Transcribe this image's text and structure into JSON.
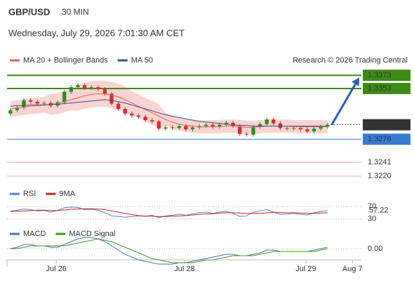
{
  "header": {
    "symbol": "GBP/USD",
    "interval": "30 MIN",
    "datetime": "Wednesday, July 29, 2026 7:01:30 AM CET"
  },
  "chart_data": [
    {
      "type": "candlestick",
      "source": "Research © 2026 Trading Central",
      "xlim": [
        0,
        52
      ],
      "xticks": [
        {
          "value": 7.3,
          "label": "Jul 26"
        },
        {
          "value": 26.3,
          "label": "Jul 28"
        },
        {
          "value": 44.3,
          "label": "Jul 29"
        },
        {
          "value": 51.2,
          "label": "Aug 7"
        }
      ],
      "ylim": [
        1.3208,
        1.3386
      ],
      "up_color": "#2e8b1e",
      "down_color": "#d0302b",
      "candles": {
        "open": [
          1.3315,
          1.332,
          1.3324,
          1.3335,
          1.3333,
          1.333,
          1.3331,
          1.3327,
          1.3332,
          1.3348,
          1.3355,
          1.3358,
          1.3354,
          1.3355,
          1.3352,
          1.3345,
          1.333,
          1.3322,
          1.3315,
          1.3312,
          1.331,
          1.3305,
          1.3303,
          1.3292,
          1.3294,
          1.3293,
          1.3296,
          1.3291,
          1.3294,
          1.3296,
          1.3298,
          1.3295,
          1.3298,
          1.3301,
          1.3296,
          1.3284,
          1.3283,
          1.3295,
          1.3299,
          1.3306,
          1.33,
          1.3293,
          1.3292,
          1.3293,
          1.3291,
          1.3288,
          1.3292,
          1.3295
        ],
        "high": [
          1.3323,
          1.3327,
          1.3338,
          1.3338,
          1.3336,
          1.3334,
          1.3334,
          1.3335,
          1.3351,
          1.3358,
          1.3361,
          1.3361,
          1.3358,
          1.3358,
          1.3355,
          1.3348,
          1.3333,
          1.3325,
          1.3318,
          1.3315,
          1.3313,
          1.3308,
          1.3306,
          1.3297,
          1.3297,
          1.3299,
          1.3299,
          1.3297,
          1.3299,
          1.3301,
          1.3301,
          1.3301,
          1.3304,
          1.3304,
          1.3299,
          1.3287,
          1.3298,
          1.3302,
          1.3309,
          1.3309,
          1.3303,
          1.3296,
          1.3296,
          1.3296,
          1.3294,
          1.3295,
          1.3298,
          1.3301
        ],
        "low": [
          1.3312,
          1.3317,
          1.3321,
          1.333,
          1.3327,
          1.3327,
          1.3324,
          1.3324,
          1.3329,
          1.3345,
          1.3352,
          1.3351,
          1.3351,
          1.3349,
          1.3342,
          1.3327,
          1.3319,
          1.3312,
          1.3309,
          1.3307,
          1.3302,
          1.33,
          1.3289,
          1.3289,
          1.329,
          1.329,
          1.3288,
          1.3288,
          1.3291,
          1.3293,
          1.3292,
          1.3292,
          1.3295,
          1.3293,
          1.3281,
          1.328,
          1.328,
          1.3292,
          1.3296,
          1.3297,
          1.329,
          1.3289,
          1.3289,
          1.3288,
          1.3285,
          1.3285,
          1.3289,
          1.3292
        ],
        "close": [
          1.332,
          1.3324,
          1.3335,
          1.3333,
          1.333,
          1.3331,
          1.3327,
          1.3332,
          1.3348,
          1.3355,
          1.3358,
          1.3354,
          1.3355,
          1.3352,
          1.3345,
          1.333,
          1.3322,
          1.3315,
          1.3312,
          1.331,
          1.3305,
          1.3303,
          1.3292,
          1.3294,
          1.3293,
          1.3296,
          1.3291,
          1.3294,
          1.3296,
          1.3298,
          1.3295,
          1.3298,
          1.3301,
          1.3296,
          1.3284,
          1.3283,
          1.3295,
          1.3299,
          1.3306,
          1.33,
          1.3293,
          1.3292,
          1.3293,
          1.3291,
          1.3288,
          1.3292,
          1.3295,
          1.3298
        ]
      },
      "series": [
        {
          "name": "MA 20 + Bollinger Bands",
          "color": "#e8605a",
          "band_color": "#fad4d2",
          "values": [
            1.3322,
            1.3323,
            1.3325,
            1.3326,
            1.3327,
            1.3328,
            1.3329,
            1.333,
            1.3333,
            1.3336,
            1.3339,
            1.3342,
            1.3344,
            1.3345,
            1.3345,
            1.3343,
            1.334,
            1.3336,
            1.3331,
            1.3326,
            1.3321,
            1.3316,
            1.3311,
            1.3306,
            1.3302,
            1.3299,
            1.3297,
            1.3296,
            1.3295,
            1.3295,
            1.3295,
            1.3295,
            1.3296,
            1.3296,
            1.3295,
            1.3294,
            1.3294,
            1.3295,
            1.3296,
            1.3296,
            1.3296,
            1.3296,
            1.3295,
            1.3295,
            1.3295,
            1.3295,
            1.3295,
            1.3295
          ],
          "upper": [
            1.3334,
            1.3335,
            1.3337,
            1.3338,
            1.3339,
            1.334,
            1.3345,
            1.3346,
            1.3349,
            1.3352,
            1.3359,
            1.3362,
            1.3364,
            1.3365,
            1.3365,
            1.3363,
            1.336,
            1.3356,
            1.3349,
            1.3344,
            1.3339,
            1.3334,
            1.3329,
            1.3316,
            1.3312,
            1.3309,
            1.3307,
            1.3306,
            1.3305,
            1.3305,
            1.3305,
            1.3305,
            1.3306,
            1.3306,
            1.3305,
            1.3304,
            1.3304,
            1.3305,
            1.3306,
            1.3306,
            1.3306,
            1.3306,
            1.3305,
            1.3305,
            1.3305,
            1.3305,
            1.3305,
            1.3305
          ],
          "lower": [
            1.331,
            1.3311,
            1.3313,
            1.3314,
            1.3315,
            1.3316,
            1.3313,
            1.3314,
            1.3317,
            1.332,
            1.3319,
            1.3322,
            1.3324,
            1.3325,
            1.3325,
            1.3323,
            1.332,
            1.3316,
            1.3313,
            1.3308,
            1.3303,
            1.3298,
            1.3293,
            1.3296,
            1.3292,
            1.3289,
            1.3287,
            1.3286,
            1.3285,
            1.3285,
            1.3285,
            1.3285,
            1.3286,
            1.3286,
            1.3285,
            1.3284,
            1.3284,
            1.3285,
            1.3286,
            1.3286,
            1.3286,
            1.3286,
            1.3285,
            1.3285,
            1.3285,
            1.3285,
            1.3285,
            1.3285
          ]
        },
        {
          "name": "MA 50",
          "color": "#2f5597",
          "values": [
            1.3326,
            1.3327,
            1.3327,
            1.3328,
            1.3328,
            1.3328,
            1.3329,
            1.3329,
            1.333,
            1.3331,
            1.3332,
            1.3333,
            1.3334,
            1.3335,
            1.3336,
            1.3335,
            1.3333,
            1.3331,
            1.3328,
            1.3325,
            1.3322,
            1.3319,
            1.3316,
            1.3313,
            1.3311,
            1.3309,
            1.3307,
            1.3305,
            1.3303,
            1.3302,
            1.3301,
            1.33,
            1.3299,
            1.3298,
            1.3297,
            1.3297,
            1.3296,
            1.3296,
            1.3296,
            1.3296,
            1.3296,
            1.3296,
            1.3296,
            1.3296,
            1.3296,
            1.3296,
            1.3296,
            1.3296
          ]
        }
      ],
      "levels": [
        {
          "value": 1.3373,
          "color": "#3d8b17",
          "style": "box"
        },
        {
          "value": 1.3353,
          "color": "#3d8b17",
          "style": "box"
        },
        {
          "value": 1.3298,
          "color": "#333333",
          "style": "dotted"
        },
        {
          "value": 1.3276,
          "color": "#3a7bd5",
          "style": "box"
        },
        {
          "value": 1.3241,
          "color": "#d02020",
          "style": "text"
        },
        {
          "value": 1.322,
          "label": "1.3220",
          "color": "#d02020",
          "style": "text"
        }
      ],
      "arrow_color": "#2f5fa8"
    },
    {
      "type": "line",
      "ylim": [
        25,
        80
      ],
      "yticks": [
        30,
        70
      ],
      "value_color": "#3a7bd5",
      "series": [
        {
          "name": "RSI",
          "color": "#5b7fd6",
          "values": [
            55,
            58,
            62,
            60,
            56,
            57,
            52,
            58,
            66,
            68,
            67,
            60,
            61,
            58,
            50,
            40,
            38,
            36,
            38,
            40,
            39,
            42,
            34,
            40,
            42,
            46,
            42,
            47,
            50,
            52,
            48,
            52,
            55,
            48,
            38,
            40,
            52,
            56,
            60,
            52,
            45,
            46,
            48,
            45,
            43,
            50,
            54,
            57.22
          ]
        },
        {
          "name": "9MA",
          "color": "#d02020",
          "values": [
            54,
            55,
            56,
            57,
            58,
            58,
            57,
            57,
            59,
            61,
            62,
            63,
            63,
            62,
            60,
            56,
            52,
            48,
            44,
            41,
            39,
            39,
            38,
            38,
            39,
            40,
            41,
            43,
            45,
            46,
            47,
            49,
            50,
            50,
            49,
            48,
            48,
            48,
            50,
            51,
            51,
            50,
            50,
            49,
            48,
            48,
            49,
            50
          ]
        }
      ]
    },
    {
      "type": "line",
      "ylim": [
        -0.0012,
        0.0012
      ],
      "yticks": [
        {
          "value": 0,
          "label": "0.00"
        }
      ],
      "value_color": "#3a7bd5",
      "series": [
        {
          "name": "MACD",
          "color": "#4472c4",
          "values": [
            0.0,
            0.0001,
            0.0003,
            0.0003,
            0.0002,
            0.0002,
            0.0001,
            0.0001,
            0.0003,
            0.0005,
            0.0007,
            0.0008,
            0.0008,
            0.0007,
            0.0005,
            0.0002,
            -0.0001,
            -0.0004,
            -0.0006,
            -0.0008,
            -0.0009,
            -0.001,
            -0.0011,
            -0.0011,
            -0.0011,
            -0.001,
            -0.001,
            -0.0009,
            -0.0008,
            -0.0007,
            -0.0006,
            -0.0005,
            -0.0004,
            -0.0004,
            -0.0005,
            -0.0005,
            -0.0004,
            -0.0003,
            -0.0001,
            -0.0001,
            -0.0002,
            -0.0002,
            -0.0002,
            -0.0002,
            -0.0002,
            -0.0001,
            0.0,
            0.0001
          ]
        },
        {
          "name": "MACD Signal",
          "color": "#3d9a1a",
          "values": [
            0.0,
            0.0,
            0.0001,
            0.0002,
            0.0002,
            0.0002,
            0.0002,
            0.0002,
            0.0002,
            0.0003,
            0.0004,
            0.0005,
            0.0006,
            0.0007,
            0.0006,
            0.0005,
            0.0003,
            0.0001,
            -0.0001,
            -0.0003,
            -0.0005,
            -0.0007,
            -0.0008,
            -0.0009,
            -0.001,
            -0.001,
            -0.001,
            -0.001,
            -0.0009,
            -0.0008,
            -0.0008,
            -0.0007,
            -0.0006,
            -0.0005,
            -0.0005,
            -0.0005,
            -0.0005,
            -0.0004,
            -0.0003,
            -0.0002,
            -0.0002,
            -0.0002,
            -0.0002,
            -0.0002,
            -0.0002,
            -0.0002,
            -0.0001,
            0.0
          ]
        }
      ]
    }
  ]
}
